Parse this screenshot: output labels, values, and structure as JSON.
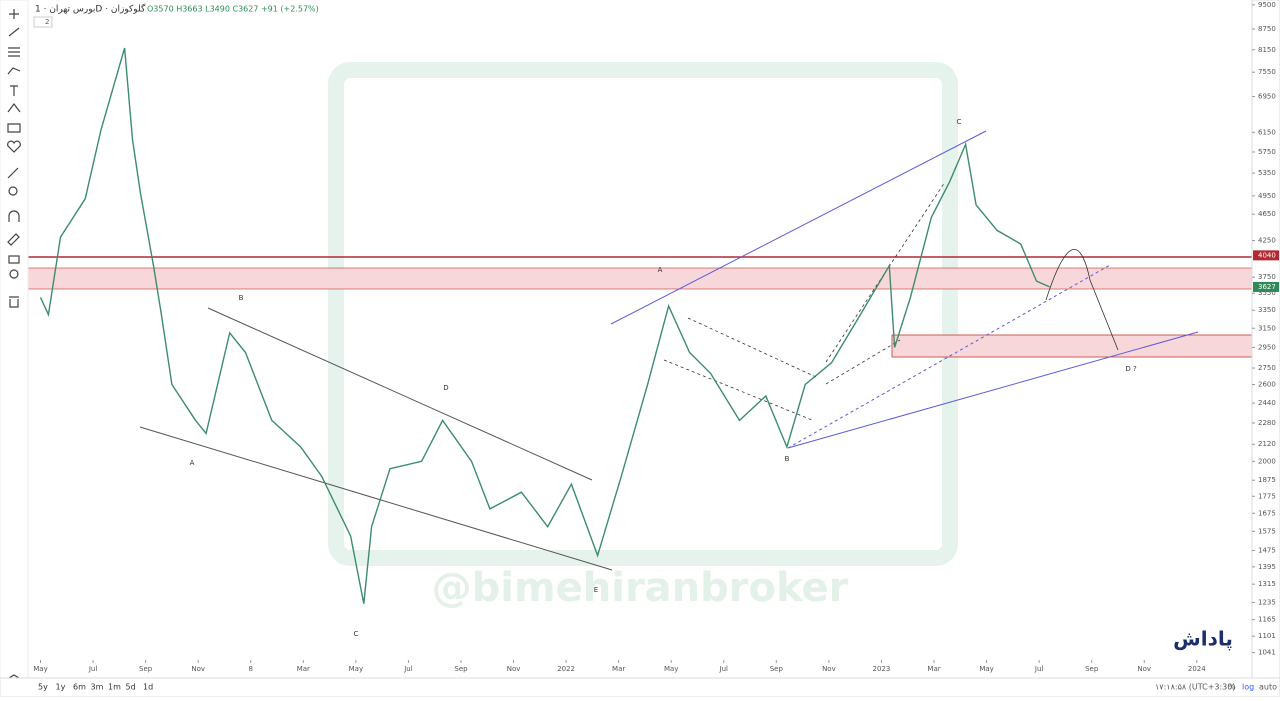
{
  "header": {
    "title": "بورس تهران · 1D · گلوکوزان",
    "ohlc": "O3570 H3663 L3490 C3627 +91 (+2.57%)",
    "interval_badge": "2"
  },
  "chart_data": {
    "type": "line",
    "color": "#3c8c6e",
    "log": true,
    "x": [
      0,
      0.3,
      0.76,
      1.7,
      2.3,
      3.2,
      3.5,
      3.8,
      4.3,
      4.6,
      5,
      5.9,
      6.3,
      7.2,
      7.8,
      8.8,
      9.9,
      10.7,
      11.8,
      12.3,
      12.6,
      13.3,
      14.5,
      15.3,
      16.4,
      17.1,
      18.3,
      19.3,
      20.2,
      21.2,
      22.1,
      23.1,
      23.9,
      24.7,
      25.5,
      26.6,
      27.6,
      28.4,
      29.1,
      30.1,
      31.2,
      32.3,
      32.5,
      33.1,
      33.9,
      34.6,
      35.2,
      35.6,
      36.4,
      37.3,
      37.9,
      38.4
    ],
    "values": [
      3500,
      3300,
      4300,
      4900,
      6200,
      8200,
      6000,
      5000,
      3900,
      3300,
      2600,
      2300,
      2200,
      3100,
      2900,
      2300,
      2100,
      1900,
      1550,
      1230,
      1600,
      1950,
      2000,
      2300,
      2000,
      1700,
      1800,
      1600,
      1850,
      1450,
      1900,
      2600,
      3400,
      2900,
      2700,
      2300,
      2500,
      2100,
      2600,
      2800,
      3300,
      3900,
      2950,
      3500,
      4600,
      5200,
      5900,
      4800,
      4400,
      4200,
      3700,
      3627
    ],
    "xlim": [
      -0.4,
      46.1
    ],
    "ylim": [
      1015,
      9660
    ],
    "xticks": [
      {
        "value": 0,
        "label": "May"
      },
      {
        "value": 2,
        "label": "Jul"
      },
      {
        "value": 4,
        "label": "Sep"
      },
      {
        "value": 6,
        "label": "Nov"
      },
      8,
      {
        "value": 10,
        "label": "Mar"
      },
      {
        "value": 12,
        "label": "May"
      },
      {
        "value": 14,
        "label": "Jul"
      },
      {
        "value": 16,
        "label": "Sep"
      },
      {
        "value": 18,
        "label": "Nov"
      },
      {
        "value": 20,
        "label": "2022"
      },
      {
        "value": 22,
        "label": "Mar"
      },
      {
        "value": 24,
        "label": "May"
      },
      {
        "value": 26,
        "label": "Jul"
      },
      {
        "value": 28,
        "label": "Sep"
      },
      {
        "value": 30,
        "label": "Nov"
      },
      {
        "value": 32,
        "label": "2023"
      },
      {
        "value": 34,
        "label": "Mar"
      },
      {
        "value": 36,
        "label": "May"
      },
      {
        "value": 38,
        "label": "Jul"
      },
      {
        "value": 40,
        "label": "Sep"
      },
      {
        "value": 42,
        "label": "Nov"
      },
      {
        "value": 44,
        "label": "2024"
      }
    ],
    "yticks": [
      9500,
      8750,
      8150,
      7550,
      6950,
      6150,
      5750,
      5350,
      4950,
      4650,
      4250,
      3750,
      3550,
      3350,
      3150,
      2950,
      2750,
      2600,
      2440,
      2280,
      2120,
      2000,
      1875,
      1775,
      1675,
      1575,
      1475,
      1395,
      1315,
      1235,
      1165,
      1101,
      1041
    ],
    "price_labels": [
      {
        "value": 4040,
        "color": "#b22833"
      },
      {
        "value": 3627,
        "color": "#2e8b57"
      }
    ],
    "annotations": [
      "A",
      "B",
      "C",
      "D",
      "E",
      "A",
      "B",
      "C",
      "D ?"
    ]
  },
  "watermark": "@bimehiranbroker",
  "logo": "پاداش",
  "bottom_bar": {
    "ranges": [
      "5y",
      "1y",
      "6m",
      "3m",
      "1m",
      "5d",
      "1d"
    ],
    "clock": "۱۷:۱۸:۵۸ (UTC+3:30)",
    "percent": "%",
    "log": "log",
    "auto": "auto"
  }
}
